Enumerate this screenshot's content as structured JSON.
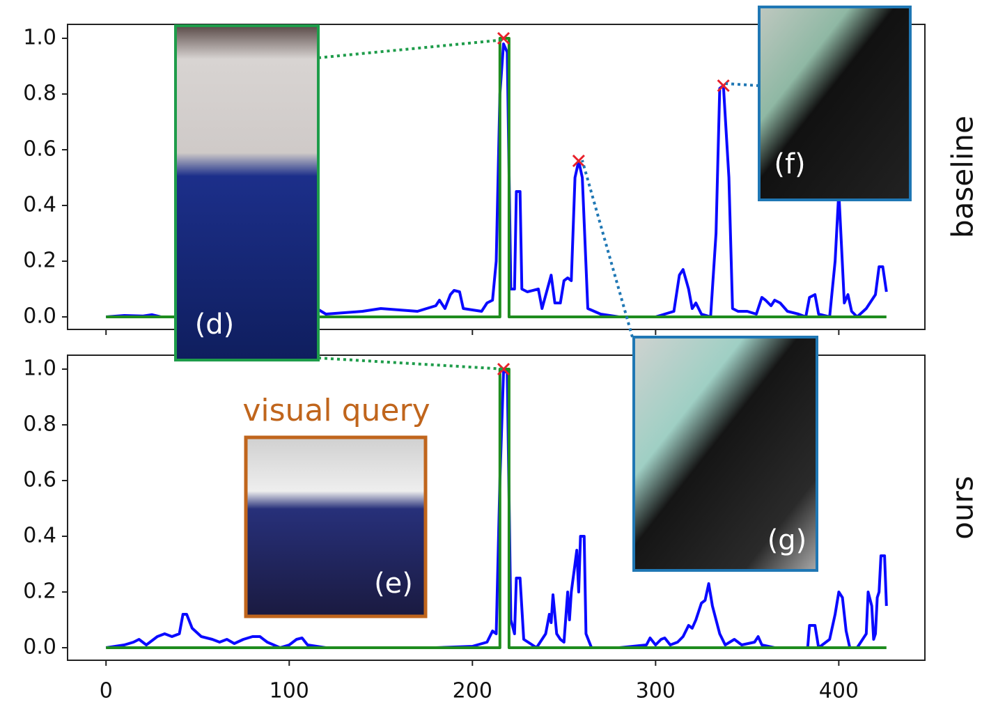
{
  "chart_data": [
    {
      "type": "line",
      "label": "baseline",
      "annotations": [
        "(d)",
        "(f)",
        "(g)"
      ],
      "xlim": [
        -21,
        447
      ],
      "ylim": [
        -0.045,
        1.05
      ],
      "xticks": [
        0,
        100,
        200,
        300,
        400
      ],
      "xtick_labels": false,
      "yticks": [
        {
          "value": 0,
          "label": "0.0"
        },
        {
          "value": 0.2,
          "label": "0.2"
        },
        {
          "value": 0.4,
          "label": "0.4"
        },
        {
          "value": 0.6,
          "label": "0.6"
        },
        {
          "value": 0.8,
          "label": "0.8"
        },
        {
          "value": 1,
          "label": "1.0"
        }
      ],
      "series": [
        {
          "color": "#0a0aff",
          "x": [
            0,
            10,
            20,
            25,
            30,
            40,
            115,
            120,
            140,
            150,
            160,
            170,
            180,
            182,
            185,
            188,
            190,
            193,
            195,
            205,
            208,
            211,
            213,
            215,
            217,
            219,
            221,
            223,
            224,
            226,
            227,
            230,
            236,
            238,
            243,
            245,
            248,
            250,
            252,
            254,
            256,
            258,
            260,
            263,
            270,
            280,
            300,
            310,
            313,
            315,
            318,
            320,
            322,
            325,
            330,
            333,
            335,
            337,
            340,
            342,
            345,
            350,
            355,
            358,
            360,
            363,
            365,
            368,
            372,
            378,
            382,
            384,
            387,
            389,
            395,
            398,
            400,
            403,
            405,
            407,
            410,
            415,
            420,
            422,
            424,
            426
          ],
          "values": [
            0,
            0.005,
            0.003,
            0.008,
            0,
            0,
            0.03,
            0.01,
            0.02,
            0.03,
            0.025,
            0.02,
            0.04,
            0.06,
            0.03,
            0.08,
            0.095,
            0.09,
            0.03,
            0.02,
            0.05,
            0.06,
            0.2,
            0.8,
            0.98,
            0.95,
            0.1,
            0.1,
            0.45,
            0.45,
            0.1,
            0.09,
            0.1,
            0.03,
            0.15,
            0.05,
            0.05,
            0.13,
            0.14,
            0.13,
            0.5,
            0.56,
            0.5,
            0.03,
            0.01,
            0,
            0,
            0.02,
            0.15,
            0.17,
            0.1,
            0.03,
            0.05,
            0.01,
            0,
            0.3,
            0.82,
            0.83,
            0.5,
            0.03,
            0.02,
            0.02,
            0.01,
            0.07,
            0.06,
            0.04,
            0.06,
            0.05,
            0.02,
            0.01,
            0,
            0.07,
            0.08,
            0.01,
            0,
            0.2,
            0.45,
            0.05,
            0.08,
            0.02,
            0,
            0.03,
            0.08,
            0.18,
            0.18,
            0.09
          ]
        },
        {
          "color": "#1e8c1e",
          "x": [
            0,
            215,
            215,
            220,
            220,
            426
          ],
          "values": [
            0,
            0,
            1,
            1,
            0,
            0
          ]
        }
      ],
      "markers": {
        "color": "#e8202a",
        "x": [
          217,
          258,
          337
        ],
        "values": [
          1,
          0.56,
          0.83
        ]
      }
    },
    {
      "type": "line",
      "label": "ours",
      "annotations": [
        "visual query",
        "(e)"
      ],
      "xlim": [
        -21,
        447
      ],
      "ylim": [
        -0.045,
        1.05
      ],
      "xticks": [
        0,
        100,
        200,
        300,
        400
      ],
      "xtick_labels": true,
      "yticks": [
        {
          "value": 0,
          "label": "0.0"
        },
        {
          "value": 0.2,
          "label": "0.2"
        },
        {
          "value": 0.4,
          "label": "0.4"
        },
        {
          "value": 0.6,
          "label": "0.6"
        },
        {
          "value": 0.8,
          "label": "0.8"
        },
        {
          "value": 1,
          "label": "1.0"
        }
      ],
      "series": [
        {
          "color": "#0a0aff",
          "x": [
            0,
            5,
            10,
            15,
            18,
            22,
            28,
            32,
            36,
            40,
            42,
            44,
            47,
            52,
            58,
            62,
            66,
            70,
            75,
            80,
            84,
            88,
            95,
            100,
            104,
            107,
            110,
            120,
            180,
            200,
            208,
            211,
            213,
            215,
            217,
            219,
            221,
            223,
            224,
            226,
            228,
            235,
            240,
            242,
            243,
            244,
            246,
            248,
            250,
            252,
            253,
            254,
            256,
            257,
            258,
            259,
            261,
            262,
            265,
            280,
            295,
            297,
            300,
            303,
            305,
            308,
            312,
            315,
            318,
            320,
            322,
            325,
            327,
            329,
            331,
            335,
            338,
            343,
            347,
            354,
            356,
            358,
            365,
            375,
            383,
            384,
            387,
            389,
            395,
            398,
            400,
            402,
            404,
            406,
            410,
            413,
            415,
            416,
            418,
            419,
            420,
            421,
            422,
            423,
            425,
            426
          ],
          "values": [
            0,
            0.005,
            0.01,
            0.02,
            0.03,
            0.01,
            0.04,
            0.05,
            0.04,
            0.05,
            0.12,
            0.12,
            0.07,
            0.04,
            0.03,
            0.02,
            0.03,
            0.015,
            0.03,
            0.04,
            0.04,
            0.02,
            0,
            0.01,
            0.03,
            0.035,
            0.01,
            0,
            0,
            0.005,
            0.02,
            0.06,
            0.05,
            0.6,
            0.99,
            0.99,
            0.1,
            0.05,
            0.25,
            0.25,
            0.03,
            0,
            0.05,
            0.12,
            0.09,
            0.19,
            0.05,
            0.03,
            0.02,
            0.2,
            0.1,
            0.2,
            0.3,
            0.35,
            0.2,
            0.4,
            0.4,
            0.05,
            0,
            0,
            0.01,
            0.035,
            0.01,
            0.03,
            0.035,
            0.01,
            0.02,
            0.04,
            0.08,
            0.07,
            0.1,
            0.16,
            0.17,
            0.23,
            0.15,
            0.05,
            0.01,
            0.03,
            0.01,
            0.02,
            0.04,
            0.01,
            0,
            0,
            0,
            0.08,
            0.08,
            0,
            0.03,
            0.12,
            0.2,
            0.18,
            0.06,
            0,
            0,
            0.03,
            0.05,
            0.2,
            0.15,
            0.03,
            0.05,
            0.18,
            0.2,
            0.33,
            0.33,
            0.15
          ]
        },
        {
          "color": "#1e8c1e",
          "x": [
            0,
            215,
            215,
            220,
            220,
            426
          ],
          "values": [
            0,
            0,
            1,
            1,
            0,
            0
          ]
        }
      ],
      "markers": {
        "color": "#e8202a",
        "x": [
          217
        ],
        "values": [
          1
        ]
      }
    }
  ]
}
